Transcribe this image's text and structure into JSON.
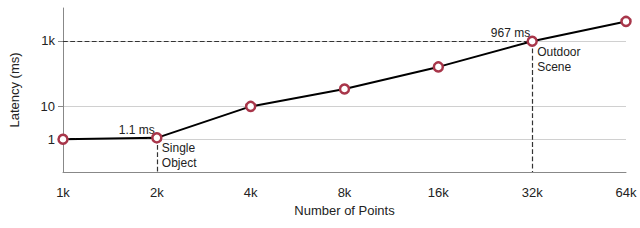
{
  "chart_data": {
    "type": "line",
    "x_label": "Number of Points",
    "y_label": "Latency (ms)",
    "categories": [
      "1k",
      "2k",
      "4k",
      "8k",
      "16k",
      "32k",
      "64k"
    ],
    "series": [
      {
        "name": "Latency",
        "color": "#000000",
        "marker_color": "#a8364a",
        "marker": "circle",
        "line_style": "solid",
        "values": [
          1,
          1.1,
          10,
          34,
          160,
          967,
          3900
        ]
      }
    ],
    "log": "y",
    "ylim": [
      0.1,
      10000
    ],
    "yticks": [
      1,
      10,
      {
        "value": 1000,
        "label": "1k"
      }
    ],
    "grid": true,
    "legend": false,
    "annotations": [
      {
        "x": "2k",
        "y": 1.1,
        "value_label": "1.1 ms",
        "text": "Single Object"
      },
      {
        "x": "32k",
        "y": 967,
        "value_label": "967 ms",
        "text": "Outdoor Scene"
      }
    ]
  }
}
